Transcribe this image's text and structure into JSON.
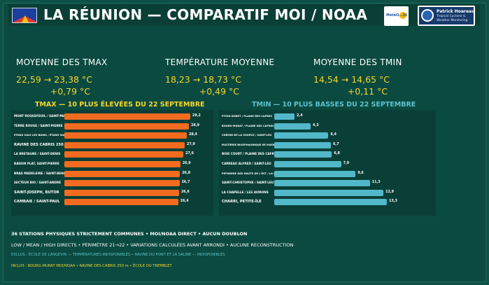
{
  "header": {
    "title": "LA RÉUNION — COMPARATIF MOI / NOAA",
    "meteo_logo_text": "MétéO...Oi",
    "brand_name": "Patrick Hoareau",
    "brand_sub": "Tropical Cyclone & Weather Monitoring"
  },
  "stats": [
    {
      "label": "MOYENNE DES TMAX",
      "range": "22,59 → 23,38 °C",
      "delta": "+0,79 °C"
    },
    {
      "label": "TEMPÉRATURE MOYENNE",
      "range": "18,23 → 18,73 °C",
      "delta": "+0,49 °C"
    },
    {
      "label": "MOYENNE DES TMIN",
      "range": "14,54 → 14,65 °C",
      "delta": "+0,11 °C"
    }
  ],
  "tmax": {
    "title": "TMAX — 10 PLUS ÉLEVÉES DU 22 SEPTEMBRE",
    "rows": [
      {
        "name": "MONT ROQUEFEUIL / SAINT-PAUL",
        "value": "29,2",
        "v": 29.2
      },
      {
        "name": "TERRE ROUGE / SAINT-PIERRE",
        "value": "28,9",
        "v": 28.9
      },
      {
        "name": "ETANG SALE LES BAINS / ÉTANG-SALÉ",
        "value": "28,4",
        "v": 28.4
      },
      {
        "name": "RAVINE DES CABRIS 250 M",
        "value": "27,9",
        "v": 27.9
      },
      {
        "name": "LA BRETAGNE / SAINT-DENIS",
        "value": "27,6",
        "v": 27.6
      },
      {
        "name": "BASSIN PLAT, SAINT-PIERRE",
        "value": "26,9",
        "v": 26.9
      },
      {
        "name": "BRAS MADELEINE / SAINT-BENOIT",
        "value": "26,8",
        "v": 26.8
      },
      {
        "name": "SECTEUR BIO / SAINT-ANDRÉ",
        "value": "26,7",
        "v": 26.7
      },
      {
        "name": "SAINT-JOSEPH, BUTOR",
        "value": "26,6",
        "v": 26.6
      },
      {
        "name": "CAMBAIE / SAINT-PAUL",
        "value": "26,4",
        "v": 26.4
      }
    ]
  },
  "tmin": {
    "title": "TMIN — 10 PLUS BASSES DU 22 SEPTEMBRE",
    "rows": [
      {
        "name": "PITON DORET / PLAINE DES CAFRES",
        "value": "2,4",
        "v": 2.4
      },
      {
        "name": "BOURG-MURAT / PLAINE DES CAFRES",
        "value": "4,3",
        "v": 4.3
      },
      {
        "name": "CHEMIN DE LA SOURCE / SAINT-LEU",
        "value": "6,4",
        "v": 6.4
      },
      {
        "name": "MULTIERIE BIOSPHAONIQUE DE MAFALA / SAINT-LEU",
        "value": "6,7",
        "v": 6.7
      },
      {
        "name": "BOIS COURT / PLAINE DES CAFRES",
        "value": "6,8",
        "v": 6.8
      },
      {
        "name": "CARREAU ALFRED / SAINT-LEU",
        "value": "7,9",
        "v": 7.9
      },
      {
        "name": "PEPINIERE DES HAUTS DE L'EST / LA PLAINE",
        "value": "9,6",
        "v": 9.6
      },
      {
        "name": "SAINT-CHRISTOPHE / SAINT-LEU",
        "value": "11,3",
        "v": 11.3
      },
      {
        "name": "LA CHAPELLE / LES AVIRONS",
        "value": "12,9",
        "v": 12.9
      },
      {
        "name": "CHARRI, PETITE-ÎLE",
        "value": "13,3",
        "v": 13.3
      }
    ]
  },
  "footer": {
    "line1": "36 STATIONS PHYSIQUES STRICTEMENT COMMUNES • MOI/NOAA DIRECT • AUCUN DOUBLON",
    "line2": "LOW / MEAN / HIGH DIRECTS • PÉRIMÈTRE 21→22 • VARIATIONS CALCULÉES AVANT ARRONDI • AUCUNE RECONSTRUCTION",
    "line3": "EXCLUS : ÉCOLE DE LANGEVIN — TEMPÉRATURES INDISPONIBLES • RAVINE DU PONT ET LA SALINE — INDISPONIBLES",
    "line4": "INCLUS : BOURG-MURAT MOI/NOAA • RAVINE DES CABRIS 250 m • ÉCOLE DU TREMBLET"
  },
  "colors": {
    "background": "#0b4a40",
    "tmax_bar": "#f26b1f",
    "tmin_bar": "#52b8c9",
    "value_yellow": "#f6d62a"
  }
}
